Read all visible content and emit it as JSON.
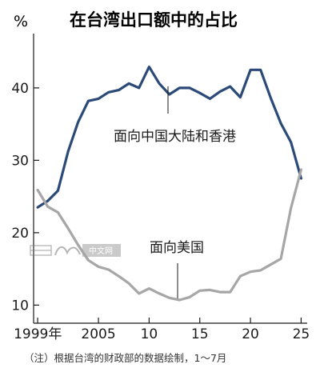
{
  "chart_data": {
    "type": "line",
    "title": "在台湾出口额中的占比",
    "ylabel": "%",
    "x": [
      1999,
      2000,
      2001,
      2002,
      2003,
      2004,
      2005,
      2006,
      2007,
      2008,
      2009,
      2010,
      2011,
      2012,
      2013,
      2014,
      2015,
      2016,
      2017,
      2018,
      2019,
      2020,
      2021,
      2022,
      2023,
      2024,
      2025
    ],
    "x_tick_labels": [
      "1999年",
      "2005",
      "10",
      "15",
      "20",
      "25"
    ],
    "x_tick_values": [
      1999,
      2005,
      2010,
      2015,
      2020,
      2025
    ],
    "y_ticks": [
      10,
      20,
      30,
      40
    ],
    "ylim": [
      7.5,
      47.5
    ],
    "xlim": [
      1998.6,
      2025.6
    ],
    "grid": false,
    "series": [
      {
        "name": "面向中国大陆和香港",
        "color": "#2b4a78",
        "values": [
          23.5,
          24.4,
          25.8,
          31.2,
          35.3,
          38.2,
          38.5,
          39.4,
          39.7,
          40.6,
          40.0,
          42.9,
          40.6,
          39.1,
          40.0,
          40.0,
          39.3,
          38.5,
          39.5,
          40.2,
          38.7,
          42.5,
          42.5,
          38.6,
          35.1,
          32.5,
          27.5
        ]
      },
      {
        "name": "面向美国",
        "color": "#a6a6a6",
        "values": [
          25.9,
          23.6,
          22.8,
          20.6,
          18.3,
          16.2,
          15.3,
          14.9,
          14.0,
          13.0,
          11.6,
          12.3,
          11.6,
          11.0,
          10.7,
          11.1,
          12.0,
          12.1,
          11.8,
          11.8,
          14.0,
          14.6,
          14.8,
          15.6,
          16.4,
          23.4,
          28.7
        ]
      }
    ],
    "annotations": [
      {
        "text": "面向中国大陆和香港",
        "series": 0
      },
      {
        "text": "面向美国",
        "series": 1
      }
    ],
    "note": "（注）根据台湾的财政部的数据绘制，1～7月"
  },
  "watermark": {
    "text": "中文网",
    "logo": "日经"
  },
  "colors": {
    "axis": "#1a1a1a"
  }
}
